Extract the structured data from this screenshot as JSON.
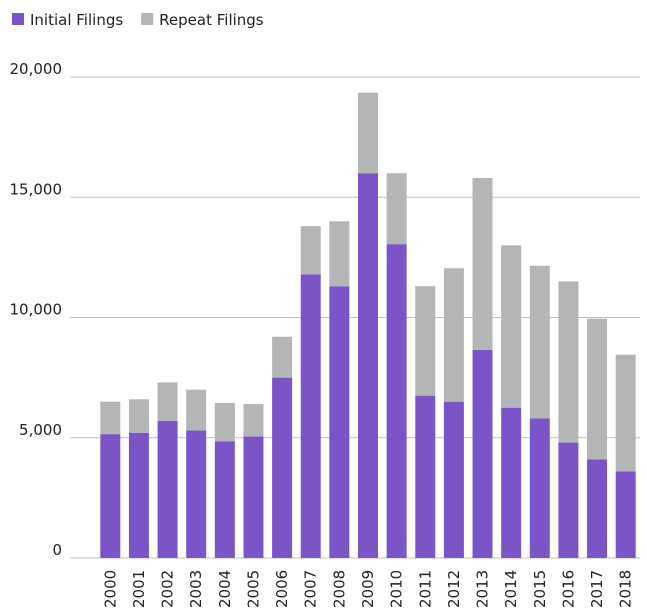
{
  "chart_data": {
    "type": "stacked_bar",
    "categories": [
      "2000",
      "2001",
      "2002",
      "2003",
      "2004",
      "2005",
      "2006",
      "2007",
      "2008",
      "2009",
      "2010",
      "2011",
      "2012",
      "2013",
      "2014",
      "2015",
      "2016",
      "2017",
      "2018"
    ],
    "series": [
      {
        "name": "Initial Filings",
        "color": "#7b55c7",
        "values": [
          5150,
          5200,
          5700,
          5300,
          4850,
          5050,
          7500,
          11800,
          11300,
          16000,
          13050,
          6750,
          6500,
          8650,
          6250,
          5800,
          4800,
          4100,
          3600
        ]
      },
      {
        "name": "Repeat Filings",
        "color": "#b3b5b7",
        "values": [
          1350,
          1400,
          1600,
          1700,
          1600,
          1350,
          1700,
          2000,
          2700,
          3350,
          2950,
          4550,
          5550,
          7150,
          6750,
          6350,
          6700,
          5850,
          4850
        ]
      }
    ],
    "ylim": [
      0,
      20000
    ],
    "yticks": [
      0,
      {
        "value": 5000,
        "label": "5,000"
      },
      {
        "value": 10000,
        "label": "10,000"
      },
      {
        "value": 15000,
        "label": "15,000"
      },
      {
        "value": 20000,
        "label": "20,000"
      }
    ],
    "grid": true,
    "legend": "top-left"
  }
}
